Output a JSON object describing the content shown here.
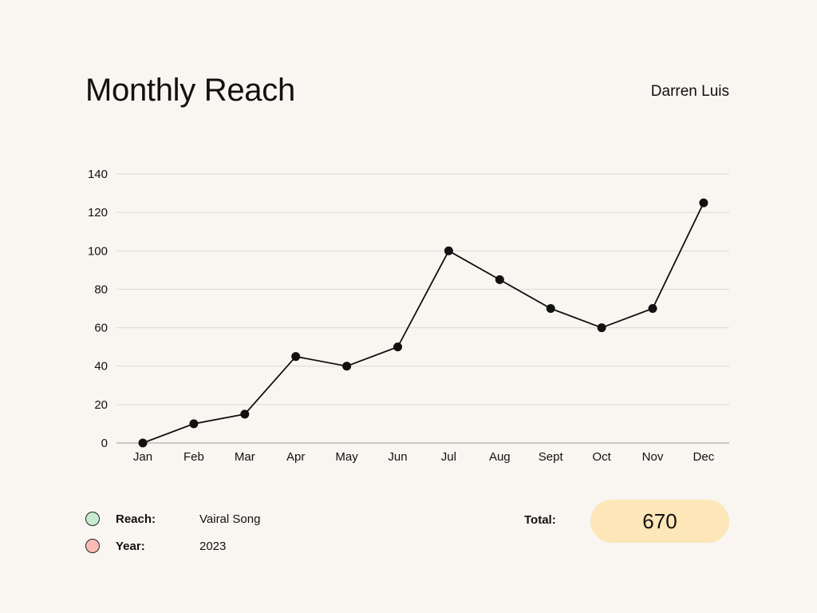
{
  "title": "Monthly Reach",
  "author": "Darren Luis",
  "chart_data": {
    "type": "line",
    "x": [
      "Jan",
      "Feb",
      "Mar",
      "Apr",
      "May",
      "Jun",
      "Jul",
      "Aug",
      "Sept",
      "Oct",
      "Nov",
      "Dec"
    ],
    "series": [
      {
        "values": [
          0,
          10,
          15,
          45,
          40,
          50,
          100,
          85,
          70,
          60,
          70,
          125
        ]
      }
    ],
    "yticks": [
      0,
      20,
      40,
      60,
      80,
      100,
      120,
      140
    ],
    "ylim": [
      0,
      140
    ],
    "grid": true,
    "line_color": "#111111",
    "grid_color": "#dcd9d4"
  },
  "legend": [
    {
      "key": "Reach:",
      "value": "Vairal Song",
      "color": "#c6ebce"
    },
    {
      "key": "Year:",
      "value": "2023",
      "color": "#f9bcb5"
    }
  ],
  "total": {
    "label": "Total:",
    "value": "670",
    "color": "#fde6b7"
  }
}
